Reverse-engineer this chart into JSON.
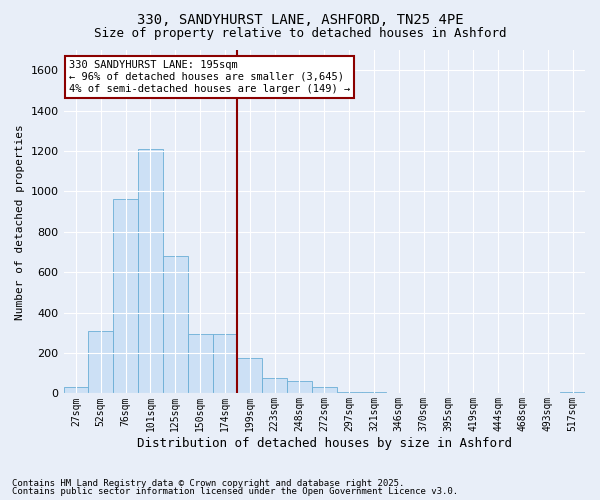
{
  "title_line1": "330, SANDYHURST LANE, ASHFORD, TN25 4PE",
  "title_line2": "Size of property relative to detached houses in Ashford",
  "xlabel": "Distribution of detached houses by size in Ashford",
  "ylabel": "Number of detached properties",
  "footnote1": "Contains HM Land Registry data © Crown copyright and database right 2025.",
  "footnote2": "Contains public sector information licensed under the Open Government Licence v3.0.",
  "categories": [
    "27sqm",
    "52sqm",
    "76sqm",
    "101sqm",
    "125sqm",
    "150sqm",
    "174sqm",
    "199sqm",
    "223sqm",
    "248sqm",
    "272sqm",
    "297sqm",
    "321sqm",
    "346sqm",
    "370sqm",
    "395sqm",
    "419sqm",
    "444sqm",
    "468sqm",
    "493sqm",
    "517sqm"
  ],
  "values": [
    30,
    310,
    960,
    1210,
    680,
    295,
    295,
    175,
    75,
    60,
    30,
    5,
    5,
    2,
    1,
    0,
    1,
    0,
    0,
    0,
    5
  ],
  "bar_color": "#cce0f5",
  "bar_edge_color": "#6aaed6",
  "vline_index": 7,
  "vline_color": "#8b0000",
  "annotation_line1": "330 SANDYHURST LANE: 195sqm",
  "annotation_line2": "← 96% of detached houses are smaller (3,645)",
  "annotation_line3": "4% of semi-detached houses are larger (149) →",
  "annotation_box_edge_color": "#8b0000",
  "ylim": [
    0,
    1700
  ],
  "yticks": [
    0,
    200,
    400,
    600,
    800,
    1000,
    1200,
    1400,
    1600
  ],
  "bg_color": "#e8eef8",
  "grid_color": "white",
  "bar_width": 1.0,
  "title_fontsize": 10,
  "subtitle_fontsize": 9,
  "ylabel_fontsize": 8,
  "xlabel_fontsize": 9,
  "tick_fontsize": 7,
  "footnote_fontsize": 6.5
}
